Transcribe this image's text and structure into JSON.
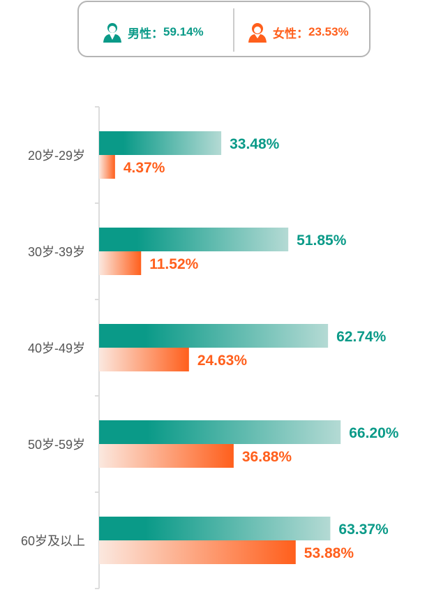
{
  "legend": {
    "male": {
      "label": "男性：",
      "value": "59.14%",
      "icon": "male-user-icon"
    },
    "female": {
      "label": "女性：",
      "value": "23.53%",
      "icon": "female-user-icon"
    }
  },
  "colors": {
    "male": "#0a9a88",
    "male_light": "#b4dad4",
    "female": "#ff5f1c",
    "female_light": "#fbe8df",
    "axis": "#dcdcdc",
    "label": "#555555"
  },
  "chart_data": {
    "type": "bar",
    "orientation": "horizontal",
    "categories": [
      "20岁-29岁",
      "30岁-39岁",
      "40岁-49岁",
      "50岁-59岁",
      "60岁及以上"
    ],
    "series": [
      {
        "name": "男性",
        "values": [
          33.48,
          51.85,
          62.74,
          66.2,
          63.37
        ],
        "labels": [
          "33.48%",
          "51.85%",
          "62.74%",
          "66.20%",
          "63.37%"
        ]
      },
      {
        "name": "女性",
        "values": [
          4.37,
          11.52,
          24.63,
          36.88,
          53.88
        ],
        "labels": [
          "4.37%",
          "11.52%",
          "24.63%",
          "36.88%",
          "53.88%"
        ]
      }
    ],
    "xlim": [
      0,
      90
    ],
    "legend_position": "top"
  }
}
